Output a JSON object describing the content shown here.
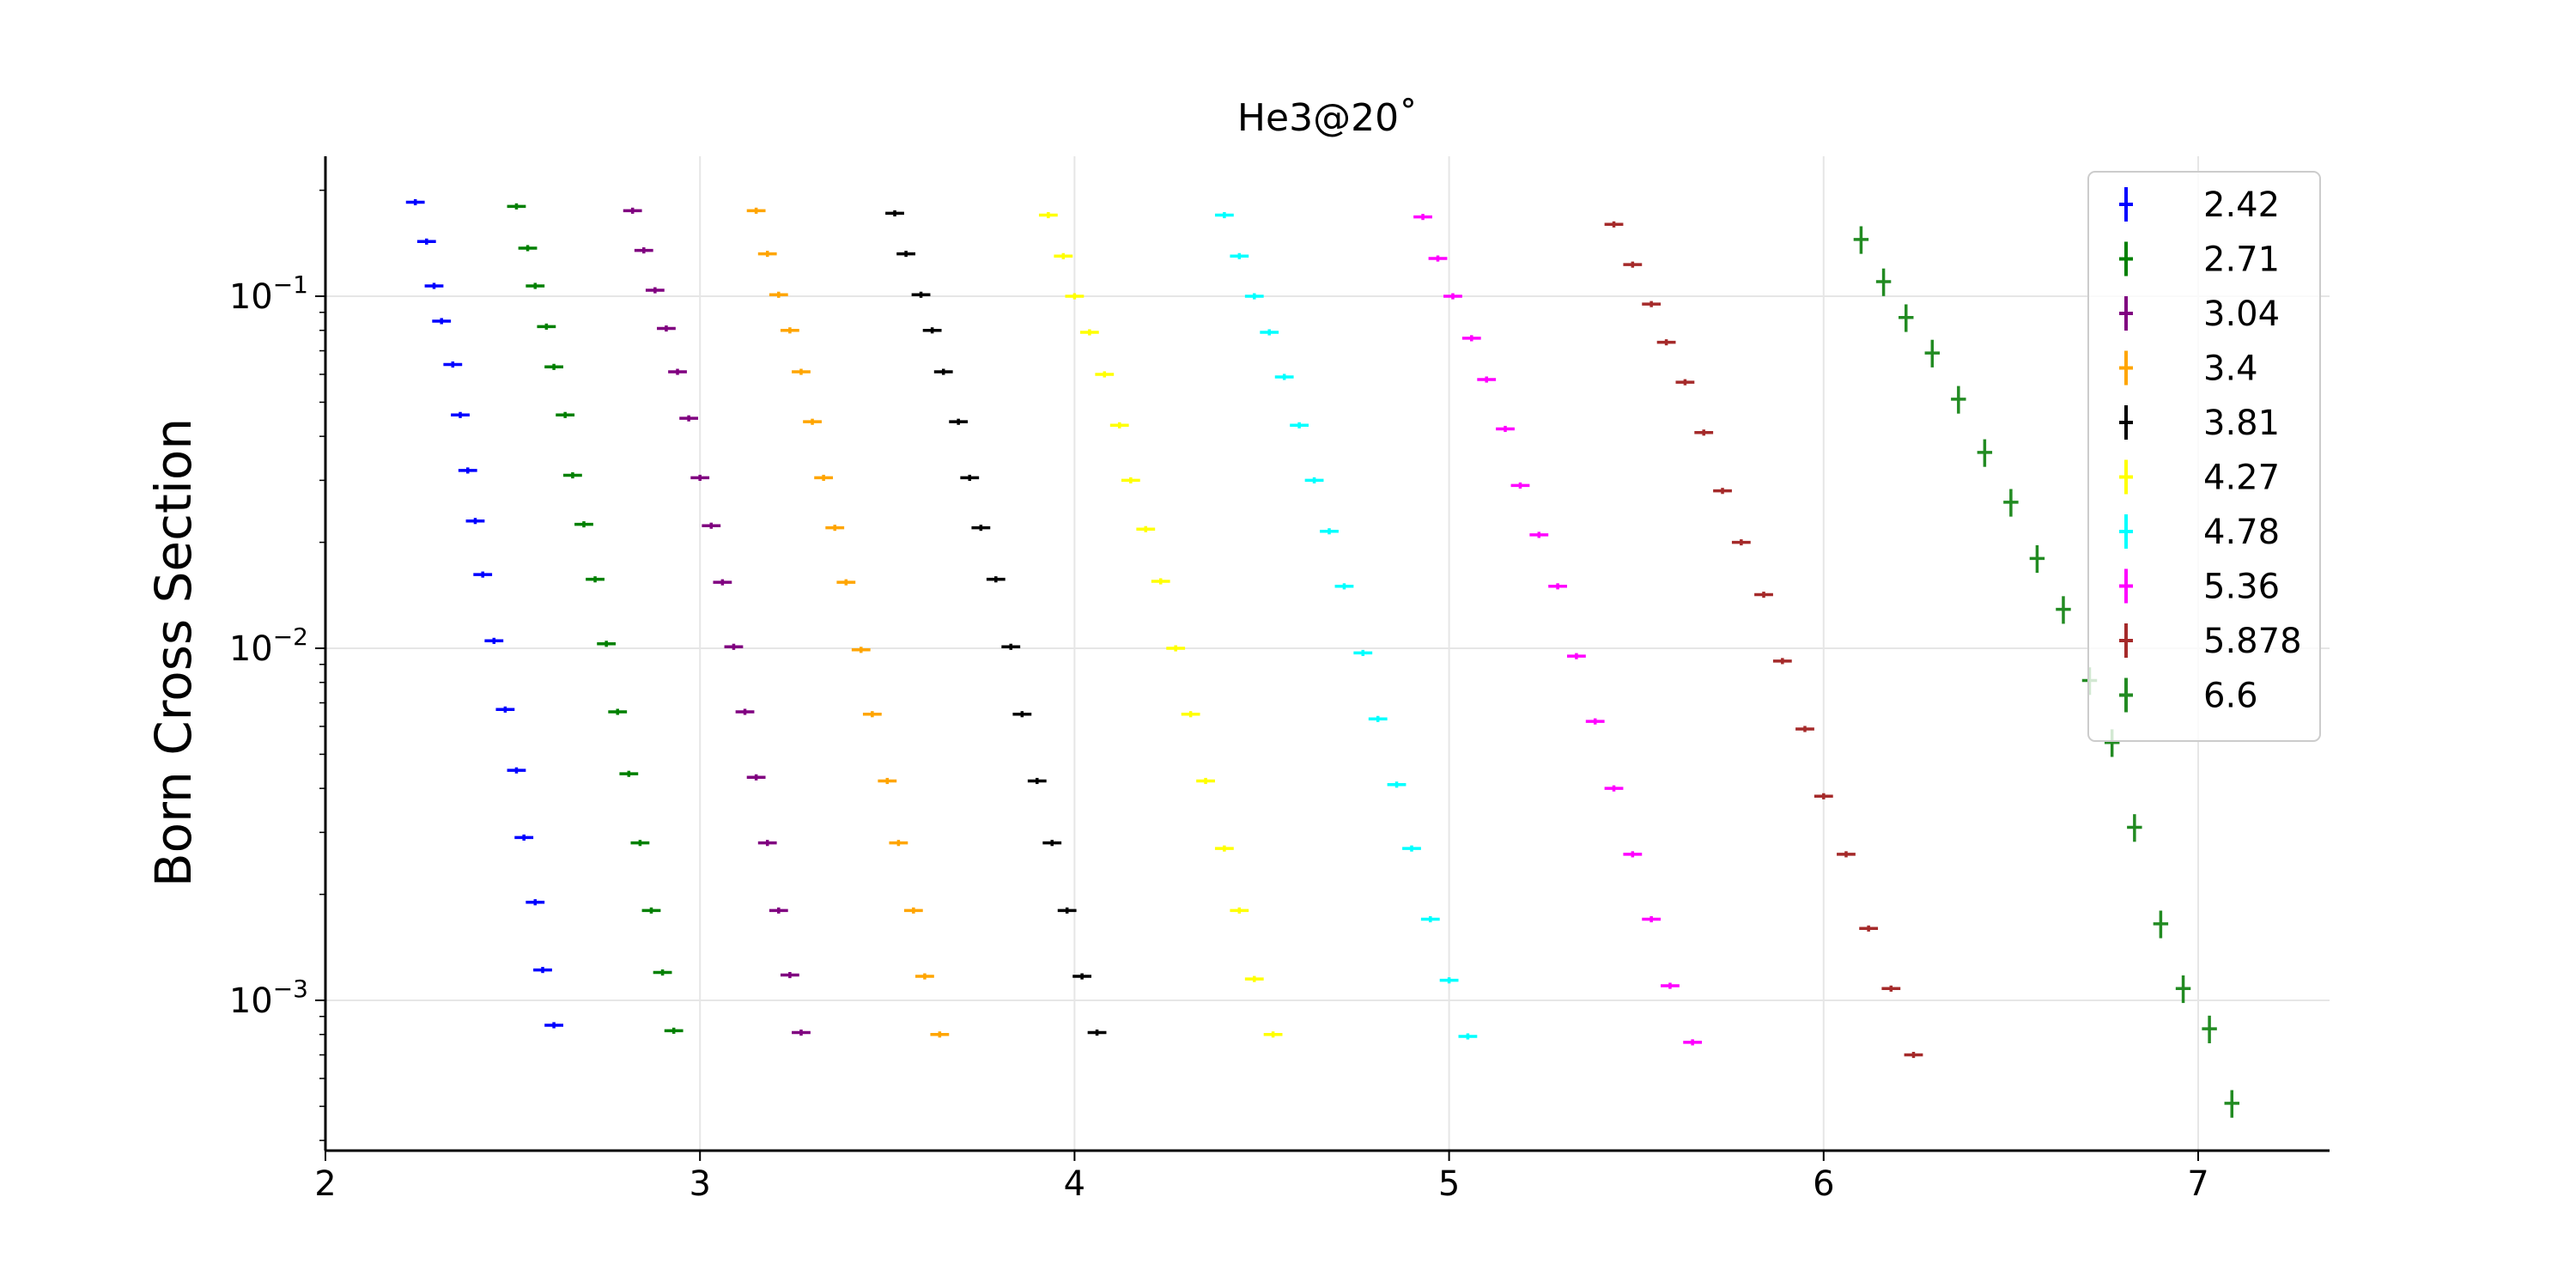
{
  "chart_data": {
    "type": "scatter",
    "title": "He3@20˚",
    "xlabel": "",
    "ylabel": "Born Cross Section",
    "xlim": [
      2.0,
      7.35
    ],
    "ylim": [
      0.00038,
      0.25
    ],
    "yscale": "log",
    "grid": true,
    "legend_position": "top-right",
    "x_ticks": [
      2,
      3,
      4,
      5,
      6,
      7
    ],
    "y_ticks": [
      {
        "value": 0.1,
        "base": "10",
        "exp": "−1"
      },
      {
        "value": 0.01,
        "base": "10",
        "exp": "−2"
      },
      {
        "value": 0.001,
        "base": "10",
        "exp": "−3"
      }
    ],
    "series": [
      {
        "name": "2.42",
        "color": "#0000ff",
        "x": [
          2.24,
          2.27,
          2.29,
          2.31,
          2.34,
          2.36,
          2.38,
          2.4,
          2.42,
          2.45,
          2.48,
          2.51,
          2.53,
          2.56,
          2.58,
          2.61
        ],
        "y": [
          0.185,
          0.143,
          0.107,
          0.085,
          0.064,
          0.046,
          0.032,
          0.023,
          0.0162,
          0.0105,
          0.0067,
          0.0045,
          0.0029,
          0.0019,
          0.00122,
          0.00085
        ],
        "xerr": 0.025,
        "yerr_rel": 0.02
      },
      {
        "name": "2.71",
        "color": "#008000",
        "x": [
          2.51,
          2.54,
          2.56,
          2.59,
          2.61,
          2.64,
          2.66,
          2.69,
          2.72,
          2.75,
          2.78,
          2.81,
          2.84,
          2.87,
          2.9,
          2.93
        ],
        "y": [
          0.18,
          0.137,
          0.107,
          0.082,
          0.063,
          0.046,
          0.031,
          0.0225,
          0.0157,
          0.0103,
          0.0066,
          0.0044,
          0.0028,
          0.0018,
          0.0012,
          0.00082
        ],
        "xerr": 0.025,
        "yerr_rel": 0.02
      },
      {
        "name": "3.04",
        "color": "#800080",
        "x": [
          2.82,
          2.85,
          2.88,
          2.91,
          2.94,
          2.97,
          3.0,
          3.03,
          3.06,
          3.09,
          3.12,
          3.15,
          3.18,
          3.21,
          3.24,
          3.27
        ],
        "y": [
          0.175,
          0.135,
          0.104,
          0.081,
          0.061,
          0.045,
          0.0305,
          0.0223,
          0.0154,
          0.0101,
          0.0066,
          0.0043,
          0.0028,
          0.0018,
          0.00118,
          0.00081
        ],
        "xerr": 0.025,
        "yerr_rel": 0.02
      },
      {
        "name": "3.4",
        "color": "#ffa500",
        "x": [
          3.15,
          3.18,
          3.21,
          3.24,
          3.27,
          3.3,
          3.33,
          3.36,
          3.39,
          3.43,
          3.46,
          3.5,
          3.53,
          3.57,
          3.6,
          3.64
        ],
        "y": [
          0.175,
          0.132,
          0.101,
          0.08,
          0.061,
          0.044,
          0.0305,
          0.022,
          0.0154,
          0.0099,
          0.0065,
          0.0042,
          0.0028,
          0.0018,
          0.00117,
          0.0008
        ],
        "xerr": 0.025,
        "yerr_rel": 0.02
      },
      {
        "name": "3.81",
        "color": "#000000",
        "x": [
          3.52,
          3.55,
          3.59,
          3.62,
          3.65,
          3.69,
          3.72,
          3.75,
          3.79,
          3.83,
          3.86,
          3.9,
          3.94,
          3.98,
          4.02,
          4.06
        ],
        "y": [
          0.172,
          0.132,
          0.101,
          0.08,
          0.061,
          0.044,
          0.0305,
          0.022,
          0.0157,
          0.0101,
          0.0065,
          0.0042,
          0.0028,
          0.0018,
          0.00117,
          0.00081
        ],
        "xerr": 0.025,
        "yerr_rel": 0.02
      },
      {
        "name": "4.27",
        "color": "#ffff00",
        "x": [
          3.93,
          3.97,
          4.0,
          4.04,
          4.08,
          4.12,
          4.15,
          4.19,
          4.23,
          4.27,
          4.31,
          4.35,
          4.4,
          4.44,
          4.48,
          4.53
        ],
        "y": [
          0.17,
          0.13,
          0.1,
          0.079,
          0.06,
          0.043,
          0.03,
          0.0218,
          0.0155,
          0.01,
          0.0065,
          0.0042,
          0.0027,
          0.0018,
          0.00115,
          0.0008
        ],
        "xerr": 0.025,
        "yerr_rel": 0.02
      },
      {
        "name": "4.78",
        "color": "#00ffff",
        "x": [
          4.4,
          4.44,
          4.48,
          4.52,
          4.56,
          4.6,
          4.64,
          4.68,
          4.72,
          4.77,
          4.81,
          4.86,
          4.9,
          4.95,
          5.0,
          5.05
        ],
        "y": [
          0.17,
          0.13,
          0.1,
          0.079,
          0.059,
          0.043,
          0.03,
          0.0215,
          0.015,
          0.0097,
          0.0063,
          0.0041,
          0.0027,
          0.0017,
          0.00114,
          0.00079
        ],
        "xerr": 0.025,
        "yerr_rel": 0.02
      },
      {
        "name": "5.36",
        "color": "#ff00ff",
        "x": [
          4.93,
          4.97,
          5.01,
          5.06,
          5.1,
          5.15,
          5.19,
          5.24,
          5.29,
          5.34,
          5.39,
          5.44,
          5.49,
          5.54,
          5.59,
          5.65
        ],
        "y": [
          0.168,
          0.128,
          0.1,
          0.076,
          0.058,
          0.042,
          0.029,
          0.021,
          0.015,
          0.0095,
          0.0062,
          0.004,
          0.0026,
          0.0017,
          0.0011,
          0.00076
        ],
        "xerr": 0.025,
        "yerr_rel": 0.02
      },
      {
        "name": "5.878",
        "color": "#a52a2a",
        "x": [
          5.44,
          5.49,
          5.54,
          5.58,
          5.63,
          5.68,
          5.73,
          5.78,
          5.84,
          5.89,
          5.95,
          6.0,
          6.06,
          6.12,
          6.18,
          6.24
        ],
        "y": [
          0.16,
          0.123,
          0.095,
          0.074,
          0.057,
          0.041,
          0.028,
          0.02,
          0.0142,
          0.0092,
          0.0059,
          0.0038,
          0.0026,
          0.0016,
          0.00108,
          0.0007
        ],
        "xerr": 0.025,
        "yerr_rel": 0.02
      },
      {
        "name": "6.6",
        "color": "#228b22",
        "x": [
          6.1,
          6.16,
          6.22,
          6.29,
          6.36,
          6.43,
          6.5,
          6.57,
          6.64,
          6.71,
          6.77,
          6.83,
          6.9,
          6.96,
          7.03,
          7.09
        ],
        "y": [
          0.145,
          0.11,
          0.087,
          0.069,
          0.051,
          0.036,
          0.026,
          0.018,
          0.0129,
          0.0081,
          0.0054,
          0.0031,
          0.00165,
          0.00108,
          0.00083,
          0.00051
        ],
        "xerr": 0.02,
        "yerr_rel": 0.09
      }
    ]
  }
}
